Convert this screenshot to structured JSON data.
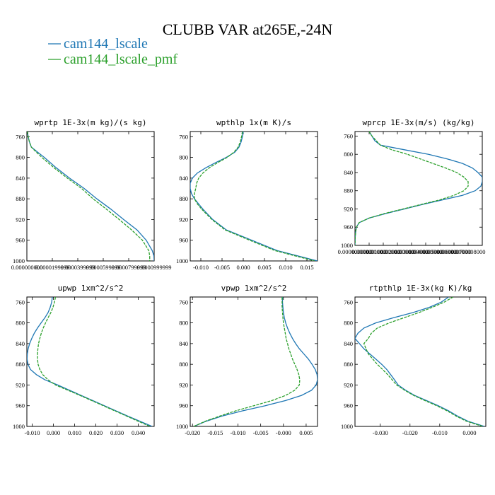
{
  "figure": {
    "title": "CLUBB VAR at265E,-24N",
    "legend": [
      {
        "name": "cam144_lscale",
        "color": "#1f77b4"
      },
      {
        "name": "cam144_lscale_pmf",
        "color": "#2ca02c"
      }
    ]
  },
  "chart_data": [
    {
      "type": "line",
      "title": "wprtp 1E-3x(m kg)/(s kg)",
      "xlim": [
        0,
        0.0001
      ],
      "ylim": [
        1000,
        750
      ],
      "xticks": [
        0,
        2e-05,
        4e-05,
        6e-05,
        8e-05,
        0.0001
      ],
      "xticklabels": [
        "0.000000000",
        "0.0000199999",
        "0.0000399999",
        "0.0000599999",
        "0.0000799999",
        "0.0000999999"
      ],
      "yticks": [
        760,
        800,
        840,
        880,
        920,
        960,
        1000
      ],
      "series": [
        {
          "name": "cam144_lscale",
          "y": [
            750,
            760,
            770,
            780,
            790,
            800,
            820,
            840,
            860,
            880,
            900,
            920,
            940,
            960,
            980,
            990,
            1000
          ],
          "x": [
            5e-07,
            1e-06,
            2e-06,
            3.5e-06,
            8.5e-06,
            1.37e-05,
            2.3e-05,
            3.35e-05,
            4.5e-05,
            5.5e-05,
            6.6e-05,
            7.6e-05,
            8.65e-05,
            9.38e-05,
            9.85e-05,
            9.98e-05,
            0.0001
          ]
        },
        {
          "name": "cam144_lscale_pmf",
          "y": [
            750,
            760,
            770,
            780,
            790,
            800,
            820,
            840,
            860,
            880,
            900,
            920,
            940,
            960,
            980,
            990,
            1000
          ],
          "x": [
            5e-07,
            1e-06,
            2e-06,
            3.5e-06,
            7.5e-06,
            1.18e-05,
            2.13e-05,
            3.18e-05,
            4.3e-05,
            5.2e-05,
            6.25e-05,
            7.25e-05,
            8.23e-05,
            9.08e-05,
            9.58e-05,
            9.65e-05,
            9.65e-05
          ]
        }
      ]
    },
    {
      "type": "line",
      "title": "wpthlp 1x(m K)/s",
      "xlim": [
        -0.0125,
        0.0175
      ],
      "ylim": [
        1000,
        750
      ],
      "xticks": [
        -0.01,
        -0.005,
        0,
        0.005,
        0.01,
        0.015
      ],
      "xticklabels": [
        "-0.010",
        "-0.005",
        "0.000",
        "0.005",
        "0.010",
        "0.015"
      ],
      "yticks": [
        760,
        800,
        840,
        880,
        920,
        960,
        1000
      ],
      "series": [
        {
          "name": "cam144_lscale",
          "y": [
            750,
            760,
            770,
            780,
            790,
            800,
            810,
            820,
            830,
            840,
            850,
            860,
            870,
            880,
            890,
            900,
            920,
            940,
            960,
            980,
            1000
          ],
          "x": [
            0.0,
            -0.0002,
            -0.0005,
            -0.001,
            -0.002,
            -0.004,
            -0.0065,
            -0.0088,
            -0.0108,
            -0.012,
            -0.0125,
            -0.0125,
            -0.0122,
            -0.0115,
            -0.0105,
            -0.0095,
            -0.0072,
            -0.004,
            0.002,
            0.008,
            0.0175
          ]
        },
        {
          "name": "cam144_lscale_pmf",
          "y": [
            750,
            760,
            770,
            780,
            790,
            800,
            810,
            820,
            830,
            840,
            850,
            860,
            870,
            880,
            890,
            900,
            920,
            940,
            960,
            980,
            1000
          ],
          "x": [
            -0.0002,
            -0.0004,
            -0.0007,
            -0.0012,
            -0.0022,
            -0.0038,
            -0.006,
            -0.008,
            -0.0095,
            -0.0105,
            -0.011,
            -0.0112,
            -0.0115,
            -0.0115,
            -0.0108,
            -0.0098,
            -0.0074,
            -0.0043,
            0.0015,
            0.0075,
            0.0168
          ]
        }
      ]
    },
    {
      "type": "line",
      "title": "wprcp 1E-3x(m/s) (kg/kg)",
      "xlim": [
        0,
        9e-07
      ],
      "ylim": [
        1000,
        750
      ],
      "xticks": [
        0,
        1e-07,
        2e-07,
        3e-07,
        4e-07,
        5e-07,
        6e-07,
        7e-07,
        8e-07
      ],
      "xticklabels": [
        "0.0000000000",
        "0.0000001000",
        "0.0000002000",
        "0.0000003000",
        "0.0000004000",
        "0.0000005000",
        "0.0000006000",
        "0.0000007000",
        "0.0000008000"
      ],
      "yticks": [
        760,
        800,
        840,
        880,
        920,
        960,
        1000
      ],
      "series": [
        {
          "name": "cam144_lscale",
          "y": [
            750,
            760,
            770,
            780,
            790,
            800,
            810,
            820,
            830,
            840,
            850,
            860,
            870,
            880,
            890,
            900,
            910,
            920,
            930,
            940,
            950,
            960,
            970,
            980,
            990,
            1000
          ],
          "x": [
            1e-07,
            1.2e-07,
            1.4e-07,
            1.8e-07,
            3.5e-07,
            5.2e-07,
            6.5e-07,
            7.6e-07,
            8.3e-07,
            8.7e-07,
            9e-07,
            9e-07,
            8.9e-07,
            8.5e-07,
            7.6e-07,
            6.2e-07,
            4.8e-07,
            3.5e-07,
            2.2e-07,
            1e-07,
            3e-08,
            1e-08,
            5e-09,
            2e-09,
            1e-09,
            0
          ]
        },
        {
          "name": "cam144_lscale_pmf",
          "y": [
            750,
            760,
            770,
            780,
            790,
            800,
            810,
            820,
            830,
            840,
            850,
            860,
            870,
            880,
            890,
            900,
            910,
            920,
            930,
            940,
            950,
            960,
            970,
            980,
            990,
            1000
          ],
          "x": [
            1e-07,
            1.2e-07,
            1.5e-07,
            1.8e-07,
            2.6e-07,
            3.7e-07,
            4.6e-07,
            5.5e-07,
            6.4e-07,
            7.2e-07,
            7.7e-07,
            8e-07,
            8e-07,
            7.7e-07,
            7e-07,
            6e-07,
            4.7e-07,
            3.4e-07,
            2.1e-07,
            1e-07,
            3e-08,
            1e-08,
            5e-09,
            2e-09,
            1e-09,
            0
          ]
        }
      ]
    },
    {
      "type": "line",
      "title": "upwp 1xm^2/s^2",
      "xlim": [
        -0.0125,
        0.0475
      ],
      "ylim": [
        1000,
        750
      ],
      "xticks": [
        -0.01,
        0,
        0.01,
        0.02,
        0.03,
        0.04
      ],
      "xticklabels": [
        "-0.010",
        "0.000",
        "0.010",
        "0.020",
        "0.030",
        "0.040"
      ],
      "yticks": [
        760,
        800,
        840,
        880,
        920,
        960,
        1000
      ],
      "series": [
        {
          "name": "cam144_lscale",
          "y": [
            750,
            760,
            770,
            780,
            790,
            800,
            810,
            820,
            830,
            840,
            850,
            860,
            870,
            880,
            890,
            900,
            910,
            920,
            940,
            960,
            980,
            1000
          ],
          "x": [
            -0.0005,
            -0.0008,
            -0.0015,
            -0.0025,
            -0.004,
            -0.0058,
            -0.0075,
            -0.009,
            -0.0102,
            -0.0112,
            -0.0119,
            -0.0123,
            -0.0124,
            -0.012,
            -0.0108,
            -0.008,
            -0.004,
            0.002,
            0.013,
            0.024,
            0.035,
            0.0465
          ]
        },
        {
          "name": "cam144_lscale_pmf",
          "y": [
            750,
            760,
            770,
            780,
            790,
            800,
            810,
            820,
            830,
            840,
            850,
            860,
            870,
            880,
            890,
            900,
            910,
            920,
            940,
            960,
            980,
            1000
          ],
          "x": [
            0.001,
            0.0005,
            -0.0002,
            -0.0012,
            -0.0025,
            -0.0037,
            -0.0048,
            -0.0057,
            -0.0064,
            -0.007,
            -0.0073,
            -0.0075,
            -0.0075,
            -0.0072,
            -0.0064,
            -0.005,
            -0.0025,
            0.001,
            0.0125,
            0.0235,
            0.0345,
            0.0455
          ]
        }
      ]
    },
    {
      "type": "line",
      "title": "vpwp 1xm^2/s^2",
      "xlim": [
        -0.0205,
        0.0075
      ],
      "ylim": [
        1000,
        750
      ],
      "xticks": [
        -0.02,
        -0.015,
        -0.01,
        -0.005,
        0,
        0.005
      ],
      "xticklabels": [
        "-0.020",
        "-0.015",
        "-0.010",
        "-0.005",
        "-0.000",
        "0.005"
      ],
      "yticks": [
        760,
        800,
        840,
        880,
        920,
        960,
        1000
      ],
      "series": [
        {
          "name": "cam144_lscale",
          "y": [
            750,
            760,
            770,
            780,
            790,
            800,
            810,
            820,
            830,
            840,
            850,
            860,
            870,
            880,
            890,
            900,
            910,
            920,
            930,
            940,
            950,
            960,
            970,
            980,
            990,
            1000
          ],
          "x": [
            -0.0002,
            -0.0002,
            -0.0001,
            0.0,
            0.0002,
            0.0005,
            0.0009,
            0.0014,
            0.002,
            0.0027,
            0.0035,
            0.0045,
            0.0055,
            0.0063,
            0.007,
            0.0074,
            0.0075,
            0.0072,
            0.0062,
            0.004,
            0.0005,
            -0.004,
            -0.009,
            -0.0135,
            -0.017,
            -0.0197
          ]
        },
        {
          "name": "cam144_lscale_pmf",
          "y": [
            750,
            760,
            770,
            780,
            790,
            800,
            810,
            820,
            830,
            840,
            850,
            860,
            870,
            880,
            890,
            900,
            910,
            920,
            930,
            940,
            950,
            960,
            970,
            980,
            990,
            1000
          ],
          "x": [
            -0.0003,
            -0.0003,
            -0.0003,
            -0.0002,
            -0.0001,
            0.0,
            0.0002,
            0.0004,
            0.0006,
            0.0009,
            0.0012,
            0.0016,
            0.002,
            0.0025,
            0.003,
            0.0034,
            0.0036,
            0.0035,
            0.0025,
            0.0005,
            -0.0025,
            -0.0065,
            -0.0105,
            -0.014,
            -0.0172,
            -0.0197
          ]
        }
      ]
    },
    {
      "type": "line",
      "title": "rtpthlp 1E-3x(kg K)/kg",
      "xlim": [
        -0.0385,
        0.0055
      ],
      "ylim": [
        1000,
        750
      ],
      "xticks": [
        -0.03,
        -0.02,
        -0.01,
        0
      ],
      "xticklabels": [
        "-0.030",
        "-0.020",
        "-0.010",
        "0.000"
      ],
      "yticks": [
        760,
        800,
        840,
        880,
        920,
        960,
        1000
      ],
      "series": [
        {
          "name": "cam144_lscale",
          "y": [
            750,
            760,
            770,
            780,
            790,
            800,
            810,
            820,
            830,
            840,
            850,
            860,
            870,
            880,
            890,
            900,
            910,
            920,
            930,
            940,
            950,
            960,
            970,
            980,
            990,
            1000
          ],
          "x": [
            -0.007,
            -0.0095,
            -0.0135,
            -0.019,
            -0.0255,
            -0.0315,
            -0.0355,
            -0.0375,
            -0.0385,
            -0.037,
            -0.0355,
            -0.0335,
            -0.0315,
            -0.0295,
            -0.0278,
            -0.0265,
            -0.0252,
            -0.024,
            -0.0215,
            -0.0185,
            -0.0145,
            -0.0105,
            -0.007,
            -0.004,
            -0.0005,
            0.005
          ]
        },
        {
          "name": "cam144_lscale_pmf",
          "y": [
            750,
            760,
            770,
            780,
            790,
            800,
            810,
            820,
            830,
            840,
            850,
            860,
            870,
            880,
            890,
            900,
            910,
            920,
            930,
            940,
            950,
            960,
            970,
            980,
            990,
            1000
          ],
          "x": [
            -0.0055,
            -0.0085,
            -0.0125,
            -0.017,
            -0.022,
            -0.027,
            -0.031,
            -0.033,
            -0.034,
            -0.0355,
            -0.0348,
            -0.034,
            -0.0325,
            -0.031,
            -0.0292,
            -0.0275,
            -0.026,
            -0.0245,
            -0.0218,
            -0.0188,
            -0.015,
            -0.011,
            -0.0075,
            -0.0045,
            -0.001,
            0.0045
          ]
        }
      ]
    }
  ]
}
